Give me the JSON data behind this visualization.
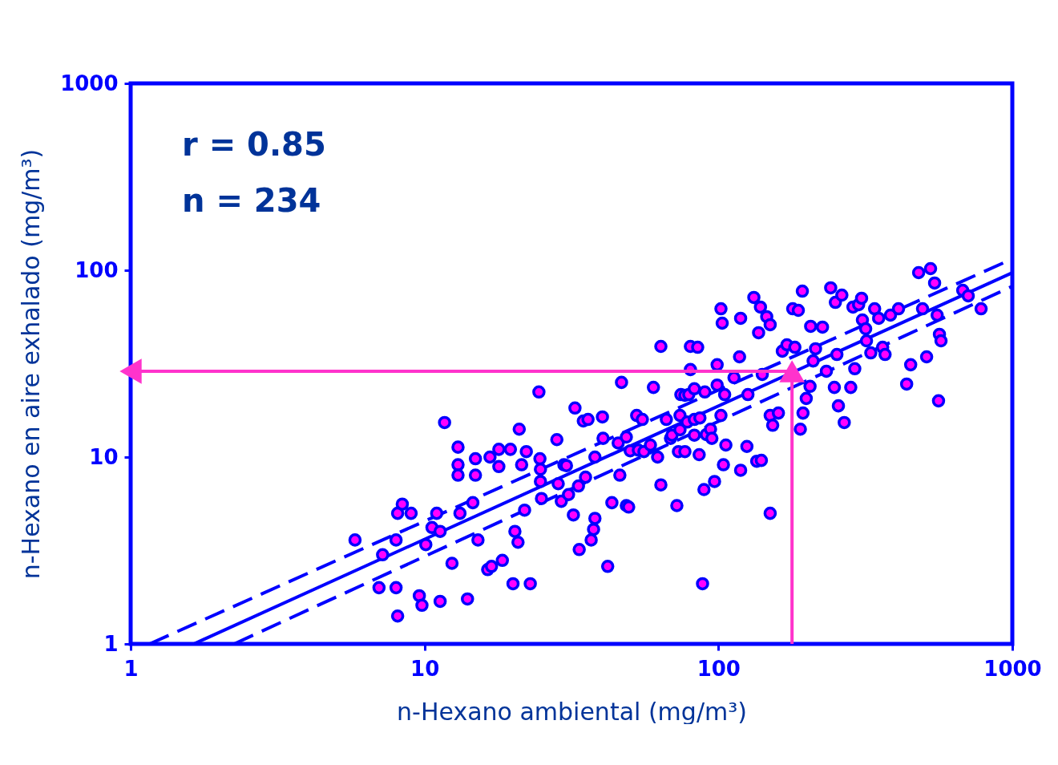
{
  "chart_data": {
    "type": "scatter",
    "xlabel": "n-Hexano ambiental (mg/m³)",
    "ylabel": "n-Hexano en aire exhalado (mg/m³)",
    "log": "xy",
    "xlim": [
      1,
      1000
    ],
    "ylim": [
      1,
      1000
    ],
    "xticks": [
      1,
      10,
      100,
      1000
    ],
    "yticks": [
      1,
      10,
      100,
      1000
    ],
    "grid": false,
    "annotations": [
      "r = 0.85",
      "n = 234"
    ],
    "series": [
      {
        "type": "line",
        "color": "#0000ff",
        "line_style": "dashed",
        "marker": "none",
        "x": [
          1.16,
          1000
        ],
        "values": [
          1,
          115
        ]
      },
      {
        "type": "line",
        "color": "#0000ff",
        "line_style": "solid",
        "marker": "none",
        "x": [
          1.64,
          1000
        ],
        "values": [
          1,
          97
        ]
      },
      {
        "type": "line",
        "color": "#0000ff",
        "line_style": "dashed",
        "marker": "none",
        "x": [
          2.25,
          1000
        ],
        "values": [
          1,
          82
        ]
      },
      {
        "color": "#ff00ff",
        "marker": "circle",
        "x": [
          5.8,
          7.2,
          7.0,
          8.0,
          8.1,
          8.0,
          8.1,
          8.4,
          9.0,
          9.6,
          9.8,
          10.1,
          10.6,
          11,
          11.3,
          11.3,
          11.7,
          12.4,
          13,
          13,
          13,
          13.2,
          14,
          14.6,
          14.9,
          14.9,
          15.2,
          16.4,
          16.9,
          16.7,
          17.9,
          17.9,
          18.4,
          19.6,
          20,
          20.3,
          20.8,
          21,
          21.4,
          21.9,
          22.2,
          22.9,
          24.7,
          24.8,
          24.8,
          25,
          24.5,
          28.2,
          28.5,
          29.2,
          29.8,
          30.4,
          30.9,
          32.1,
          32.5,
          33.4,
          33.6,
          34.7,
          35.3,
          36,
          36.9,
          37.6,
          38,
          38,
          40.5,
          40.3,
          42,
          43.4,
          45.6,
          46.8,
          46.2,
          48.6,
          49.5,
          48.6,
          50.1,
          52.7,
          53.4,
          55.1,
          55.8,
          58.7,
          60.1,
          62.1,
          63.7,
          63.7,
          66.5,
          68.7,
          69.5,
          72.2,
          73.1,
          74,
          74,
          74.5,
          76.9,
          76.9,
          78.3,
          79.3,
          80.3,
          80.3,
          82.8,
          82.8,
          85,
          82.8,
          86,
          86.5,
          88.3,
          89.3,
          89.9,
          91,
          94,
          95,
          97,
          99,
          99,
          102,
          103,
          102,
          104,
          105,
          106,
          113,
          118,
          119,
          119,
          125,
          126,
          132,
          135,
          137,
          139,
          140,
          141,
          146,
          150,
          150,
          150,
          153,
          160,
          165,
          171,
          179,
          182,
          187,
          190,
          193,
          194,
          199,
          205,
          206,
          210,
          214,
          226,
          233,
          241,
          248,
          250,
          253,
          256,
          263,
          268,
          282,
          287,
          291,
          300,
          307,
          309,
          317,
          319,
          330,
          340,
          351,
          362,
          369,
          385,
          410,
          437,
          451,
          480,
          495,
          511,
          527,
          544,
          555,
          561,
          565,
          572,
          678,
          708,
          783
        ],
        "values": [
          3.6,
          3.0,
          2.0,
          2.0,
          1.41,
          3.6,
          5.0,
          5.6,
          5.0,
          1.81,
          1.61,
          3.4,
          4.2,
          5.0,
          4.0,
          1.69,
          15.3,
          2.7,
          11.3,
          9.1,
          8.0,
          5.0,
          1.74,
          5.7,
          9.8,
          8.0,
          3.6,
          2.5,
          2.6,
          10,
          8.9,
          11,
          2.8,
          11,
          2.1,
          4.0,
          3.5,
          14.1,
          9.1,
          5.2,
          10.7,
          2.1,
          9.8,
          8.6,
          7.4,
          6.0,
          22.3,
          12.4,
          7.2,
          5.8,
          9.1,
          9.0,
          6.3,
          4.9,
          18.3,
          7.0,
          3.2,
          15.6,
          7.8,
          15.9,
          3.6,
          4.1,
          4.7,
          10,
          12.6,
          16.4,
          2.6,
          5.7,
          11.9,
          25.1,
          8.0,
          5.5,
          5.4,
          12.8,
          10.8,
          16.7,
          10.9,
          15.9,
          10.7,
          11.6,
          23.6,
          10,
          7.1,
          39.1,
          15.9,
          12.6,
          13.1,
          5.5,
          10.7,
          14.0,
          16.7,
          21.6,
          10.7,
          21.4,
          15.4,
          21.6,
          39.1,
          29.4,
          15.9,
          13.1,
          38.7,
          23.2,
          10.3,
          16.2,
          2.1,
          6.7,
          22.3,
          13.2,
          14.1,
          12.6,
          7.4,
          24.3,
          31.2,
          62.2,
          52.1,
          16.7,
          9.1,
          21.6,
          11.6,
          26.6,
          34.4,
          8.5,
          55.3,
          11.4,
          21.6,
          71.5,
          9.5,
          46.3,
          63.5,
          9.6,
          27.7,
          56.4,
          5.0,
          51.1,
          16.7,
          14.8,
          17.2,
          36.9,
          39.9,
          62.2,
          38.7,
          61.0,
          14.1,
          77.3,
          17.2,
          20.6,
          23.9,
          50.1,
          32.7,
          38,
          49.6,
          28.8,
          80.5,
          23.6,
          67.3,
          35.4,
          18.8,
          73.6,
          15.3,
          23.6,
          63.5,
          29.7,
          65.4,
          70.8,
          54.2,
          48.6,
          41.9,
          36.1,
          62.2,
          55.3,
          38.7,
          35.4,
          57.5,
          62.2,
          24.6,
          31.2,
          97.1,
          62.2,
          34.4,
          102,
          85.4,
          57.5,
          20.0,
          45.4,
          41.9,
          78.1,
          72.9,
          62.2
        ]
      },
      {
        "type": "line",
        "color": "#ff33cc",
        "line_style": "solid",
        "x": [
          178,
          178,
          1
        ],
        "values": [
          1,
          28.8,
          28.8
        ]
      }
    ]
  }
}
